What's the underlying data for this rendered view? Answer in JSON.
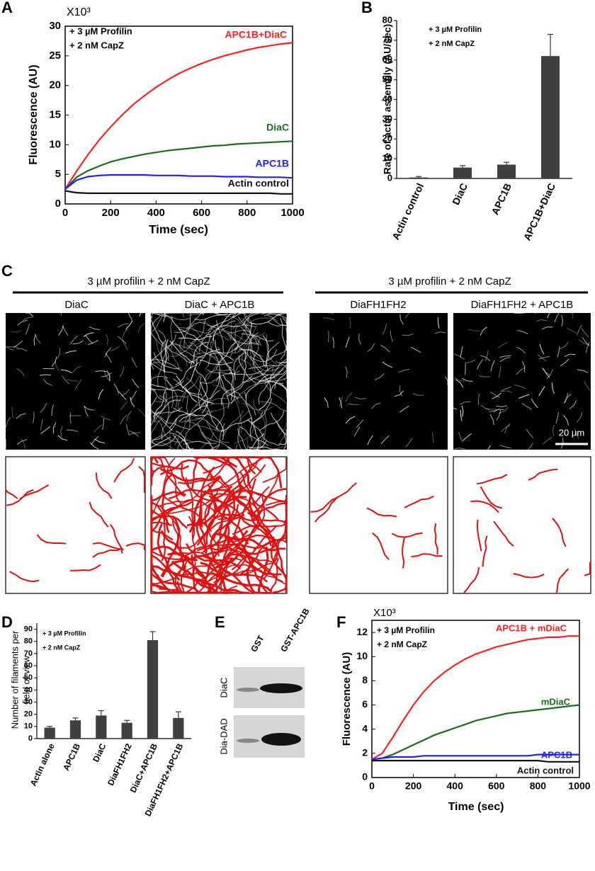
{
  "panels": [
    "A",
    "B",
    "C",
    "D",
    "E",
    "F"
  ],
  "chart_data": [
    {
      "type": "line",
      "scale_label": "X10³",
      "notes": [
        "+ 3 µM Profilin",
        "+ 2 nM CapZ"
      ],
      "xlabel": "Time (sec)",
      "ylabel": "Fluorescence (AU)",
      "x": [
        0,
        50,
        100,
        150,
        200,
        250,
        300,
        350,
        400,
        450,
        500,
        550,
        600,
        650,
        700,
        750,
        800,
        850,
        900,
        950,
        1000
      ],
      "xlim": [
        0,
        1000
      ],
      "xticks": [
        0,
        200,
        400,
        600,
        800,
        1000
      ],
      "ylim": [
        0,
        30
      ],
      "yticks": [
        0,
        5,
        10,
        15,
        20,
        25,
        30
      ],
      "series": [
        {
          "name": "APC1B+DiaC",
          "color": "#ff2020",
          "values": [
            2.5,
            5.5,
            8.3,
            10.8,
            13,
            15,
            16.8,
            18.3,
            19.7,
            20.9,
            22,
            22.9,
            23.7,
            24.4,
            25,
            25.5,
            26,
            26.4,
            26.7,
            27,
            27.2
          ]
        },
        {
          "name": "DiaC",
          "color": "#1a6b1a",
          "values": [
            2.5,
            4.5,
            5.6,
            6.4,
            7.1,
            7.6,
            8.0,
            8.4,
            8.7,
            9.0,
            9.2,
            9.4,
            9.6,
            9.8,
            9.9,
            10.1,
            10.2,
            10.3,
            10.4,
            10.5,
            10.6
          ]
        },
        {
          "name": "APC1B",
          "color": "#2020ff",
          "values": [
            2.5,
            4.0,
            4.6,
            4.8,
            4.9,
            4.9,
            4.9,
            4.9,
            4.8,
            4.8,
            4.8,
            4.7,
            4.7,
            4.7,
            4.6,
            4.6,
            4.6,
            4.5,
            4.5,
            4.5,
            4.4
          ]
        },
        {
          "name": "Actin control",
          "color": "#111111",
          "values": [
            2.2,
            1.9,
            1.8,
            1.8,
            1.8,
            1.8,
            1.8,
            1.8,
            1.8,
            1.8,
            1.8,
            1.8,
            1.8,
            1.8,
            1.8,
            1.8,
            1.8,
            1.8,
            1.8,
            1.7,
            1.7
          ]
        }
      ]
    },
    {
      "type": "bar",
      "notes": [
        "+ 3 µM Profilin",
        "+ 2 nM CapZ"
      ],
      "ylabel": "Rate of actin assembly (AU/sec)",
      "categories": [
        "Actin control",
        "DiaC",
        "APC1B",
        "APC1B+DiaC"
      ],
      "values": [
        0.5,
        5.5,
        7,
        62
      ],
      "errors": [
        0.5,
        1,
        1.2,
        11
      ],
      "color": "#404040",
      "ylim": [
        0,
        80
      ],
      "yticks": [
        0,
        10,
        20,
        30,
        40,
        50,
        60,
        70,
        80
      ]
    },
    {
      "type": "bar",
      "notes": [
        "+ 3 µM Profilin",
        "+ 2 nM CapZ"
      ],
      "ylabel": [
        "Number of filaments per",
        "field of view"
      ],
      "categories": [
        "Actin alone",
        "APC1B",
        "DiaC",
        "DiaFH1FH2",
        "DiaC+APC1B",
        "DiaFH1FH2+APC1B"
      ],
      "values": [
        9,
        15,
        19,
        13,
        81,
        17
      ],
      "errors": [
        1,
        2,
        4,
        2,
        7,
        5
      ],
      "color": "#404040",
      "ylim": [
        0,
        95
      ],
      "yticks": [
        0,
        10,
        20,
        30,
        40,
        50,
        60,
        70,
        80,
        90
      ]
    },
    {
      "type": "line",
      "scale_label": "X10³",
      "notes": [
        "+ 3 µM Profilin",
        "+ 2 nM CapZ"
      ],
      "xlabel": "Time (sec)",
      "ylabel": "Fluorescence (AU)",
      "x": [
        0,
        50,
        100,
        150,
        200,
        250,
        300,
        350,
        400,
        450,
        500,
        550,
        600,
        650,
        700,
        750,
        800,
        850,
        900,
        950,
        1000
      ],
      "xlim": [
        0,
        1000
      ],
      "xticks": [
        0,
        200,
        400,
        600,
        800,
        1000
      ],
      "ylim": [
        0,
        13
      ],
      "yticks": [
        0,
        2,
        4,
        6,
        8,
        10,
        12
      ],
      "series": [
        {
          "name": "APC1B + mDiaC",
          "color": "#ff2020",
          "values": [
            1.5,
            2.0,
            3.3,
            4.7,
            6.0,
            7.1,
            8.0,
            8.7,
            9.3,
            9.8,
            10.2,
            10.5,
            10.8,
            11.0,
            11.2,
            11.4,
            11.5,
            11.6,
            11.6,
            11.7,
            11.7
          ]
        },
        {
          "name": "mDiaC",
          "color": "#1a6b1a",
          "values": [
            1.5,
            1.6,
            1.9,
            2.3,
            2.7,
            3.1,
            3.5,
            3.8,
            4.1,
            4.4,
            4.7,
            4.9,
            5.1,
            5.3,
            5.4,
            5.5,
            5.6,
            5.7,
            5.8,
            5.9,
            6.0
          ]
        },
        {
          "name": "APC1B",
          "color": "#2020ff",
          "values": [
            1.5,
            1.6,
            1.7,
            1.7,
            1.7,
            1.8,
            1.8,
            1.8,
            1.8,
            1.8,
            1.8,
            1.8,
            1.8,
            1.8,
            1.8,
            1.8,
            1.9,
            1.9,
            1.9,
            1.9,
            1.9
          ]
        },
        {
          "name": "Actin control",
          "color": "#111111",
          "values": [
            1.4,
            1.4,
            1.4,
            1.4,
            1.4,
            1.4,
            1.4,
            1.4,
            1.4,
            1.4,
            1.4,
            1.4,
            1.4,
            1.4,
            1.4,
            1.4,
            1.4,
            1.3,
            1.3,
            1.3,
            1.3
          ]
        }
      ]
    }
  ],
  "panel_c": {
    "groups": [
      "3 µM profilin  + 2 nM CapZ",
      "3 µM profilin  + 2 nM CapZ"
    ],
    "images": [
      "DiaC",
      "DiaC + APC1B",
      "DiaFH1FH2",
      "DiaFH1FH2  + APC1B"
    ],
    "scale_bar": "20 µm"
  },
  "panel_e": {
    "lanes": [
      "GST",
      "GST-APC1B"
    ],
    "rows": [
      "DiaC",
      "Dia-DAD"
    ]
  }
}
